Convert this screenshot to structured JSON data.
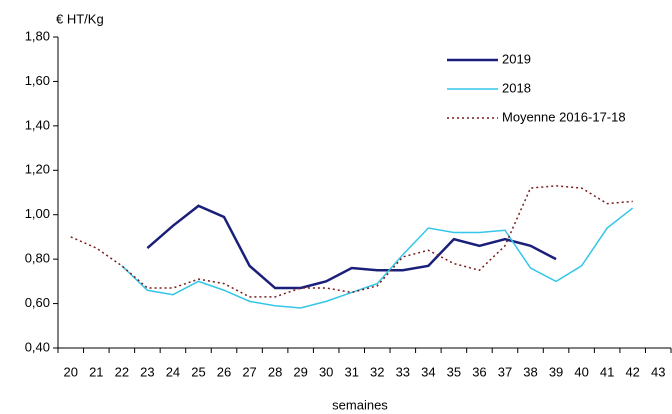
{
  "chart_data": {
    "type": "line",
    "y_label": "€ HT/Kg",
    "x_label": "semaines",
    "categories": [
      "20",
      "21",
      "22",
      "23",
      "24",
      "25",
      "26",
      "27",
      "28",
      "29",
      "30",
      "31",
      "32",
      "33",
      "34",
      "35",
      "36",
      "37",
      "38",
      "39",
      "40",
      "41",
      "42",
      "43"
    ],
    "ylim": [
      0.4,
      1.8
    ],
    "yticks": [
      {
        "value": 0.4,
        "label": "0,40"
      },
      {
        "value": 0.6,
        "label": "0,60"
      },
      {
        "value": 0.8,
        "label": "0,80"
      },
      {
        "value": 1.0,
        "label": "1,00"
      },
      {
        "value": 1.2,
        "label": "1,20"
      },
      {
        "value": 1.4,
        "label": "1,40"
      },
      {
        "value": 1.6,
        "label": "1,60"
      },
      {
        "value": 1.8,
        "label": "1,80"
      }
    ],
    "grid": false,
    "legend": "upper right",
    "series": [
      {
        "name": "2019",
        "color": "#1a1f7a",
        "line_style": "solid",
        "values": [
          null,
          null,
          null,
          0.85,
          0.95,
          1.04,
          0.99,
          0.77,
          0.67,
          0.67,
          0.7,
          0.76,
          0.75,
          0.75,
          0.77,
          0.89,
          0.86,
          0.89,
          0.86,
          0.8,
          null,
          null,
          null,
          null
        ]
      },
      {
        "name": "2018",
        "color": "#33c6ea",
        "line_style": "solid",
        "values": [
          null,
          null,
          0.77,
          0.66,
          0.64,
          0.7,
          0.66,
          0.61,
          0.59,
          0.58,
          0.61,
          0.65,
          0.69,
          0.82,
          0.94,
          0.92,
          0.92,
          0.93,
          0.76,
          0.7,
          0.77,
          0.94,
          1.03,
          null
        ]
      },
      {
        "name": "Moyenne 2016-17-18",
        "color": "#7a1c1c",
        "line_style": "dotted",
        "values": [
          0.9,
          0.85,
          0.77,
          0.67,
          0.67,
          0.71,
          0.69,
          0.63,
          0.63,
          0.67,
          0.67,
          0.65,
          0.68,
          0.81,
          0.84,
          0.78,
          0.75,
          0.86,
          1.12,
          1.13,
          1.12,
          1.05,
          1.06,
          null
        ]
      }
    ]
  }
}
